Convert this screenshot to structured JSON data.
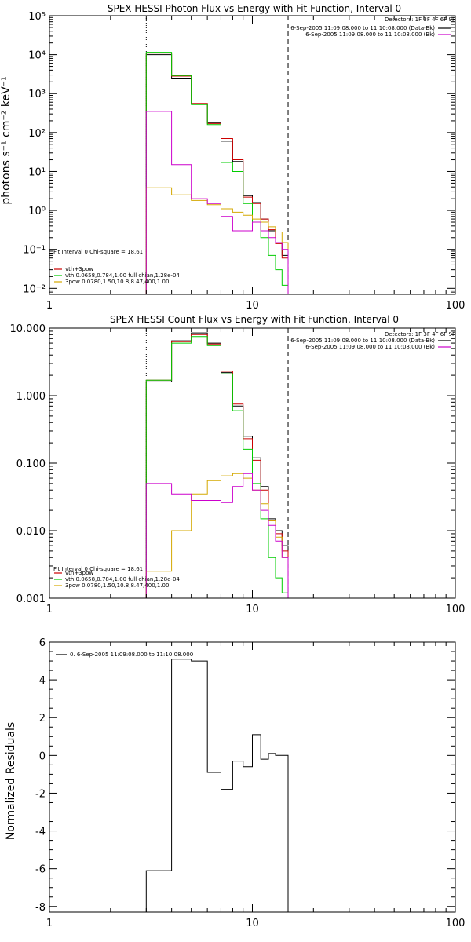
{
  "chart_data": [
    {
      "type": "line",
      "step": true,
      "title": "SPEX HESSI Photon Flux vs Energy with Fit Function, Interval 0",
      "xlabel": "",
      "ylabel": "photons s⁻¹ cm⁻² keV⁻¹",
      "xscale": "log",
      "yscale": "log",
      "xlim": [
        1,
        100
      ],
      "ylim": [
        0.007,
        100000
      ],
      "grid": false,
      "x_ticks": [
        {
          "v": 1,
          "label": "1"
        },
        {
          "v": 10,
          "label": "10"
        },
        {
          "v": 100,
          "label": "100"
        }
      ],
      "y_ticks": [
        {
          "v": 0.01,
          "label": "10⁻²"
        },
        {
          "v": 0.1,
          "label": "10⁻¹"
        },
        {
          "v": 1,
          "label": "10⁰"
        },
        {
          "v": 10,
          "label": "10¹"
        },
        {
          "v": 100,
          "label": "10²"
        },
        {
          "v": 1000,
          "label": "10³"
        },
        {
          "v": 10000,
          "label": "10⁴"
        },
        {
          "v": 100000,
          "label": "10⁵"
        }
      ],
      "vlines": [
        {
          "x": 3,
          "style": "dotted"
        },
        {
          "x": 15,
          "style": "dashed"
        }
      ],
      "detectors": "Detectors: 1F 3F 4F 6F 9F",
      "legend_top_right": [
        {
          "text": "6-Sep-2005 11:09:08.000 to 11:10:08.000 (Data-Bk)",
          "color": "#000000"
        },
        {
          "text": "6-Sep-2005 11:09:08.000 to 11:10:08.000 (Bk)",
          "color": "#cc00cc"
        }
      ],
      "fit_header": "Fit Interval 0   Chi-square = 18.61",
      "legend_bottom_left": [
        {
          "text": "vth+3pow",
          "color": "#cc0000"
        },
        {
          "text": "vth 0.0658,0.784,1.00  full chian,1.28e-04",
          "color": "#00cc00"
        },
        {
          "text": "3pow 0.0780,1.50,10.8,8.47,400,1.00",
          "color": "#d4a800"
        }
      ],
      "series": [
        {
          "name": "Data-Bk",
          "color": "#000000",
          "edges": [
            3,
            4,
            5,
            6,
            7,
            8,
            9,
            10,
            11,
            12,
            13,
            14,
            15
          ],
          "values": [
            10000,
            2500,
            550,
            180,
            60,
            18,
            2.4,
            1.6,
            0.6,
            0.3,
            0.15,
            0.07
          ]
        },
        {
          "name": "vth+3pow",
          "color": "#cc0000",
          "edges": [
            3,
            4,
            5,
            6,
            7,
            8,
            9,
            10,
            11,
            12,
            13,
            14,
            15
          ],
          "values": [
            11000,
            2800,
            560,
            170,
            70,
            20,
            2.2,
            1.5,
            0.6,
            0.32,
            0.14,
            0.06
          ]
        },
        {
          "name": "vth",
          "color": "#00cc00",
          "edges": [
            3,
            4,
            5,
            6,
            7,
            8,
            9,
            10,
            11,
            12,
            13,
            14,
            15
          ],
          "values": [
            11500,
            2900,
            520,
            160,
            17,
            10,
            1.5,
            0.5,
            0.2,
            0.07,
            0.03,
            0.012
          ]
        },
        {
          "name": "3pow",
          "color": "#d4a800",
          "edges": [
            3,
            4,
            5,
            6,
            7,
            8,
            9,
            10,
            11,
            12,
            13,
            14,
            15
          ],
          "values": [
            3.8,
            2.5,
            1.8,
            1.4,
            1.1,
            0.9,
            0.75,
            0.6,
            0.5,
            0.38,
            0.28,
            0.15
          ]
        },
        {
          "name": "Bk",
          "color": "#cc00cc",
          "edges": [
            3,
            4,
            5,
            6,
            7,
            8,
            9,
            10,
            11,
            12,
            13,
            14,
            15
          ],
          "values": [
            350,
            15,
            2,
            1.5,
            0.7,
            0.3,
            0.3,
            0.5,
            0.3,
            0.2,
            0.15,
            0.1
          ]
        }
      ]
    },
    {
      "type": "line",
      "step": true,
      "title": "SPEX HESSI Count Flux vs Energy with Fit Function, Interval 0",
      "xlabel": "",
      "ylabel": "",
      "xscale": "log",
      "yscale": "log",
      "xlim": [
        1,
        100
      ],
      "ylim": [
        0.001,
        10
      ],
      "grid": false,
      "x_ticks": [
        {
          "v": 1,
          "label": "1"
        },
        {
          "v": 10,
          "label": "10"
        },
        {
          "v": 100,
          "label": "100"
        }
      ],
      "y_ticks": [
        {
          "v": 0.001,
          "label": "0.001"
        },
        {
          "v": 0.01,
          "label": "0.010"
        },
        {
          "v": 0.1,
          "label": "0.100"
        },
        {
          "v": 1,
          "label": "1.000"
        },
        {
          "v": 10,
          "label": "10.000"
        }
      ],
      "vlines": [
        {
          "x": 3,
          "style": "dotted"
        },
        {
          "x": 15,
          "style": "dashed"
        }
      ],
      "detectors": "Detectors: 1F 3F 4F 6F 9F",
      "legend_top_right": [
        {
          "text": "6-Sep-2005 11:09:08.000 to 11:10:08.000 (Data-Bk)",
          "color": "#000000"
        },
        {
          "text": "6-Sep-2005 11:09:08.000 to 11:10:08.000 (Bk)",
          "color": "#cc00cc"
        }
      ],
      "fit_header": "Fit Interval 0   Chi-square = 18.61",
      "legend_bottom_left": [
        {
          "text": "vth+3pow",
          "color": "#cc0000"
        },
        {
          "text": "vth 0.0658,0.784,1.00  full chian,1.28e-04",
          "color": "#00cc00"
        },
        {
          "text": "3pow 0.0780,1.50,10.8,8.47,400,1.00",
          "color": "#d4a800"
        }
      ],
      "series": [
        {
          "name": "Data-Bk",
          "color": "#000000",
          "edges": [
            3,
            4,
            5,
            6,
            7,
            8,
            9,
            10,
            11,
            12,
            13,
            14,
            15
          ],
          "values": [
            1.6,
            6.5,
            8.5,
            6.0,
            2.2,
            0.7,
            0.25,
            0.12,
            0.045,
            0.015,
            0.01,
            0.006
          ]
        },
        {
          "name": "vth+3pow",
          "color": "#cc0000",
          "edges": [
            3,
            4,
            5,
            6,
            7,
            8,
            9,
            10,
            11,
            12,
            13,
            14,
            15
          ],
          "values": [
            1.7,
            6.3,
            8.0,
            5.8,
            2.3,
            0.75,
            0.23,
            0.11,
            0.04,
            0.014,
            0.009,
            0.005
          ]
        },
        {
          "name": "vth",
          "color": "#00cc00",
          "edges": [
            3,
            4,
            5,
            6,
            7,
            8,
            9,
            10,
            11,
            12,
            13,
            14,
            15
          ],
          "values": [
            1.7,
            6.0,
            7.5,
            5.5,
            2.1,
            0.6,
            0.16,
            0.05,
            0.015,
            0.004,
            0.002,
            0.0012
          ]
        },
        {
          "name": "3pow",
          "color": "#d4a800",
          "edges": [
            3,
            4,
            5,
            6,
            7,
            8,
            9,
            10,
            11,
            12,
            13,
            14,
            15
          ],
          "values": [
            0.0025,
            0.01,
            0.035,
            0.055,
            0.065,
            0.07,
            0.06,
            0.04,
            0.025,
            0.014,
            0.008,
            0.004
          ]
        },
        {
          "name": "Bk",
          "color": "#cc00cc",
          "edges": [
            3,
            4,
            5,
            6,
            7,
            8,
            9,
            10,
            11,
            12,
            13,
            14,
            15
          ],
          "values": [
            0.05,
            0.035,
            0.028,
            0.028,
            0.026,
            0.045,
            0.07,
            0.04,
            0.02,
            0.012,
            0.007,
            0.004
          ]
        }
      ]
    },
    {
      "type": "line",
      "step": true,
      "title": "",
      "xlabel": "",
      "ylabel": "Normalized Residuals",
      "xscale": "log",
      "yscale": "linear",
      "xlim": [
        1,
        100
      ],
      "ylim": [
        -8.3,
        6
      ],
      "grid": false,
      "x_ticks": [
        {
          "v": 1,
          "label": "1"
        },
        {
          "v": 10,
          "label": "10"
        },
        {
          "v": 100,
          "label": "100"
        }
      ],
      "y_ticks": [
        {
          "v": -8,
          "label": "-8"
        },
        {
          "v": -6,
          "label": "-6"
        },
        {
          "v": -4,
          "label": "-4"
        },
        {
          "v": -2,
          "label": "-2"
        },
        {
          "v": 0,
          "label": "0"
        },
        {
          "v": 2,
          "label": "2"
        },
        {
          "v": 4,
          "label": "4"
        },
        {
          "v": 6,
          "label": "6"
        }
      ],
      "legend_top_left": [
        {
          "text": "0. 6-Sep-2005 11:09:08.000 to 11:10:08.000",
          "color": "#000000"
        }
      ],
      "series": [
        {
          "name": "0. 6-Sep-2005 11:09:08.000 to 11:10:08.000",
          "color": "#000000",
          "edges": [
            3,
            4,
            5,
            6,
            7,
            8,
            9,
            10,
            11,
            12,
            13,
            14,
            15
          ],
          "values": [
            -6.1,
            5.1,
            5.0,
            -0.9,
            -1.8,
            -0.3,
            -0.6,
            1.1,
            -0.2,
            0.1,
            0.0,
            0.0
          ]
        }
      ]
    }
  ]
}
